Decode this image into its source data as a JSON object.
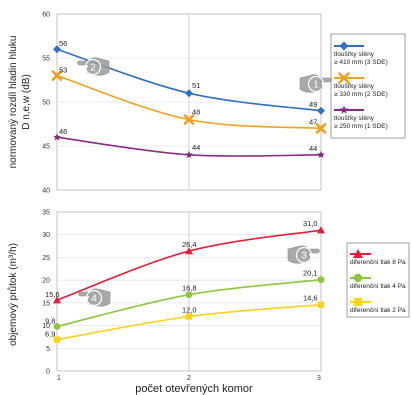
{
  "chart_data": [
    {
      "type": "line",
      "ylabel_lines": [
        "normovaný rozdíl hladin hluku",
        "D n,e,w  (dB)"
      ],
      "x": [
        1,
        2,
        3
      ],
      "xlim": [
        1,
        3
      ],
      "ylim": [
        40,
        60
      ],
      "yticks": [
        40,
        45,
        50,
        55,
        60
      ],
      "grid": true,
      "legend_position": "right",
      "series": [
        {
          "name": "tloušťky stěny ≥ 410 mm (3 SDE)",
          "legend_lines": [
            "tloušťky stěny",
            "≥ 410 mm (3 SDE)"
          ],
          "values": [
            56,
            51,
            49
          ],
          "labels": [
            "56",
            "51",
            "49"
          ],
          "color": "#2f6fc4",
          "marker": "diamond"
        },
        {
          "name": "tloušťky stěny ≥ 330 mm (2 SDE)",
          "legend_lines": [
            "tloušťky stěny",
            "≥ 330 mm (2 SDE)"
          ],
          "values": [
            53,
            48,
            47
          ],
          "labels": [
            "53",
            "48",
            "47"
          ],
          "color": "#f0a020",
          "marker": "x"
        },
        {
          "name": "tloušťky stěny ≥ 250 mm (1 SDE)",
          "legend_lines": [
            "tloušťky stěny",
            "≥ 250 mm (1 SDE)"
          ],
          "values": [
            46,
            44,
            44
          ],
          "labels": [
            "46",
            "44",
            "44"
          ],
          "color": "#8a2a82",
          "marker": "star"
        }
      ]
    },
    {
      "type": "line",
      "ylabel": "objemový průtok  (m³/h)",
      "xlabel": "počet otevřených komor",
      "x": [
        1,
        2,
        3
      ],
      "xticks": [
        "1",
        "2",
        "3"
      ],
      "xlim": [
        1,
        3
      ],
      "ylim": [
        0,
        35
      ],
      "yticks": [
        0,
        5,
        10,
        15,
        20,
        25,
        30,
        35
      ],
      "grid": true,
      "legend_position": "right",
      "series": [
        {
          "name": "diferenční tlak 8 Pa",
          "values": [
            15.6,
            26.4,
            31.0
          ],
          "labels": [
            "15,6",
            "26,4",
            "31,0"
          ],
          "color": "#e0203a",
          "marker": "triangle"
        },
        {
          "name": "diferenční tlak 4 Pa",
          "values": [
            9.8,
            16.8,
            20.1
          ],
          "labels": [
            "9,8",
            "16,8",
            "20,1"
          ],
          "color": "#8cc63f",
          "marker": "circle"
        },
        {
          "name": "diferenční tlak 2 Pa",
          "values": [
            6.9,
            12.0,
            14.6
          ],
          "labels": [
            "6,9",
            "12,0",
            "14,6"
          ],
          "color": "#ffd21a",
          "marker": "square"
        }
      ]
    }
  ],
  "callouts": [
    "1",
    "2",
    "3",
    "4"
  ]
}
